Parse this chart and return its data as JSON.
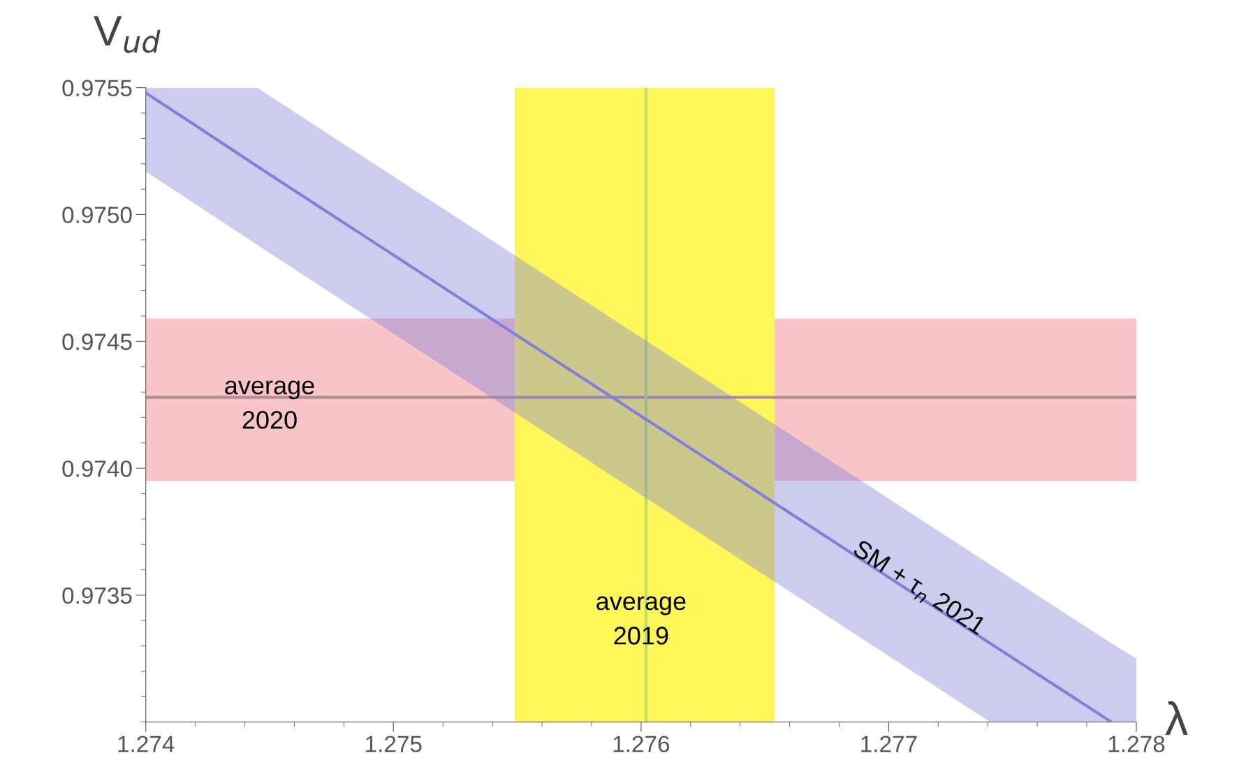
{
  "chart_data": {
    "type": "line",
    "xlabel": "λ",
    "ylabel": "V$_{ud}$",
    "xlim": [
      1.274,
      1.278
    ],
    "ylim": [
      0.973,
      0.9755
    ],
    "xticks": [
      1.274,
      1.275,
      1.276,
      1.277,
      1.278
    ],
    "yticks": [
      0.9735,
      {
        "value": 0.974,
        "label": "0.9740"
      },
      0.9745,
      {
        "value": 0.975,
        "label": "0.9750"
      },
      0.9755
    ],
    "series": [
      {
        "color": "#8080d8",
        "x": [
          1.274,
          1.27445,
          1.27741,
          1.2779,
          1.278
        ],
        "values": [
          0.97548,
          0.97519,
          0.97331,
          0.973,
          null
        ],
        "upper": [
          0.9755,
          0.9755,
          0.97362,
          0.97331,
          0.97325
        ],
        "lower": [
          0.97517,
          0.97488,
          0.973,
          0.973,
          0.973
        ]
      }
    ],
    "bands": [
      {
        "axis": "y",
        "from": 0.97395,
        "to": 0.97459,
        "color": "#f9c4c8"
      },
      {
        "axis": "x",
        "from": 1.27549,
        "to": 1.27654,
        "color": "#fff75a"
      }
    ],
    "ref_lines": [
      {
        "axis": "y",
        "value": 0.97428,
        "color": "#b09090"
      },
      {
        "axis": "x",
        "value": 1.27602,
        "color": "#b8e060"
      }
    ],
    "annotations": [
      "average\n2020",
      "average\n2019",
      "SM + τ$_{n}$ 2021"
    ],
    "grid": false,
    "legend": false
  }
}
